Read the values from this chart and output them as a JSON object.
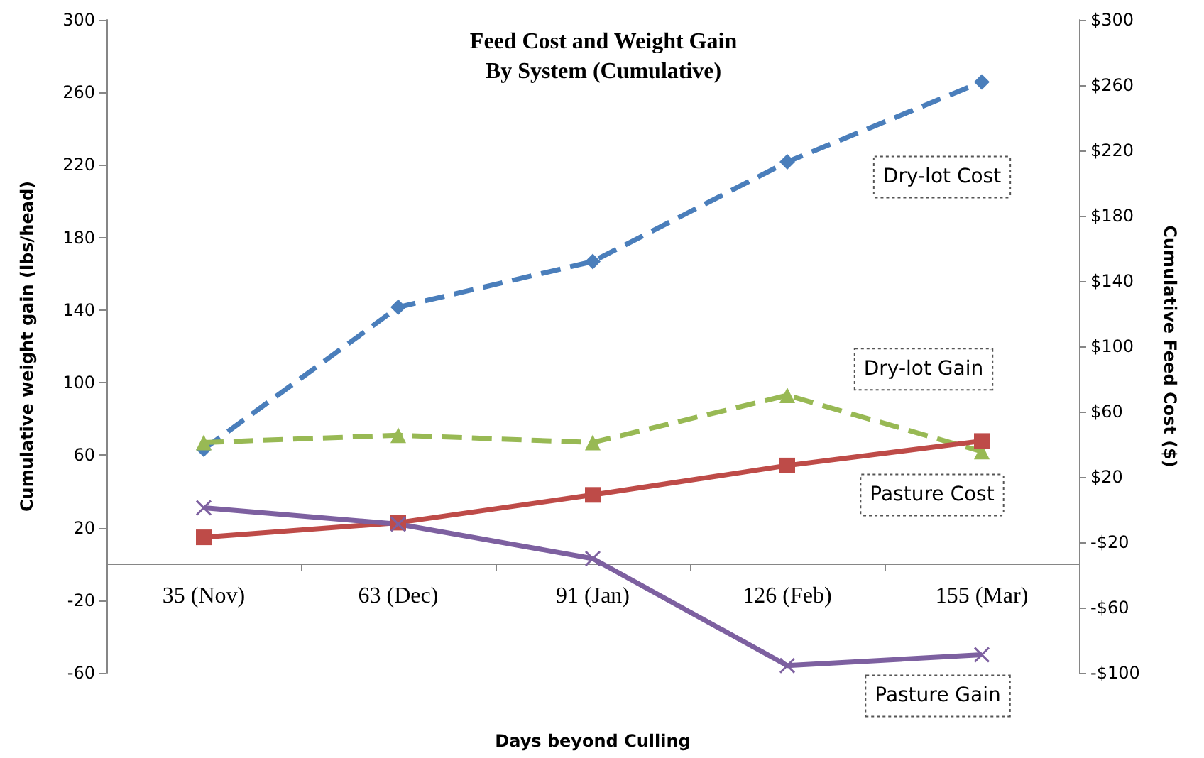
{
  "chart_data": {
    "type": "line",
    "title": "Feed Cost and Weight Gain\nBy System (Cumulative)",
    "xlabel": "Days beyond Culling",
    "ylabel": "Cumulative weight gain (lbs/head)",
    "y2label": "Cumulative Feed Cost ($)",
    "categories": [
      "35 (Nov)",
      "63 (Dec)",
      "91 (Jan)",
      "126 (Feb)",
      "155 (Mar)"
    ],
    "series": [
      {
        "name": "Dry-lot Cost",
        "color": "#4a7ebb",
        "axis": "y2",
        "marker": "diamond",
        "line_style": "dashed",
        "values": [
          37,
          124,
          152,
          213,
          262
        ]
      },
      {
        "name": "Dry-lot Gain",
        "color": "#98b954",
        "marker": "triangle",
        "line_style": "dashed",
        "values": [
          67,
          71,
          67,
          93,
          62
        ]
      },
      {
        "name": "Pasture Cost",
        "color": "#be4b48",
        "axis": "y2",
        "marker": "square",
        "line_style": "solid",
        "values": [
          -17,
          -8,
          9,
          27,
          42
        ]
      },
      {
        "name": "Pasture Gain",
        "color": "#7d60a0",
        "marker": "cross",
        "line_style": "solid",
        "values": [
          31,
          22,
          3,
          -56,
          -50
        ]
      }
    ],
    "ylim": [
      -60,
      300
    ],
    "yticks": [
      -60,
      -20,
      20,
      60,
      100,
      140,
      180,
      220,
      260,
      300
    ],
    "y2lim": [
      -100,
      300
    ],
    "y2ticks": [
      {
        "value": -100,
        "label": "-$100"
      },
      {
        "value": -60,
        "label": "-$60"
      },
      {
        "value": -20,
        "label": "-$20"
      },
      {
        "value": 20,
        "label": "$20"
      },
      {
        "value": 60,
        "label": "$60"
      },
      {
        "value": 100,
        "label": "$100"
      },
      {
        "value": 140,
        "label": "$140"
      },
      {
        "value": 180,
        "label": "$180"
      },
      {
        "value": 220,
        "label": "$220"
      },
      {
        "value": 260,
        "label": "$260"
      },
      {
        "value": 300,
        "label": "$300"
      }
    ],
    "grid": false,
    "legend": false
  }
}
